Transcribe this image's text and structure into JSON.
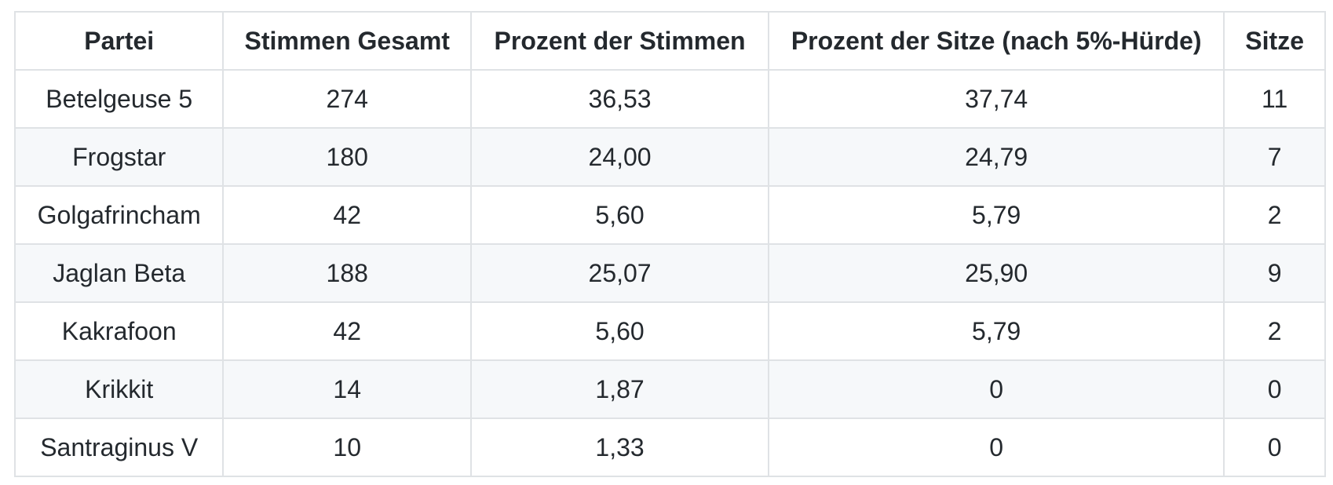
{
  "table": {
    "columns": [
      "Partei",
      "Stimmen Gesamt",
      "Prozent der Stimmen",
      "Prozent der Sitze (nach 5%-Hürde)",
      "Sitze"
    ],
    "rows": [
      [
        "Betelgeuse 5",
        "274",
        "36,53",
        "37,74",
        "11"
      ],
      [
        "Frogstar",
        "180",
        "24,00",
        "24,79",
        "7"
      ],
      [
        "Golgafrincham",
        "42",
        "5,60",
        "5,79",
        "2"
      ],
      [
        "Jaglan Beta",
        "188",
        "25,07",
        "25,90",
        "9"
      ],
      [
        "Kakrafoon",
        "42",
        "5,60",
        "5,79",
        "2"
      ],
      [
        "Krikkit",
        "14",
        "1,87",
        "0",
        "0"
      ],
      [
        "Santraginus V",
        "10",
        "1,33",
        "0",
        "0"
      ]
    ]
  },
  "colors": {
    "text": "#24292e",
    "border": "#dfe2e5",
    "stripe": "#f6f8fa",
    "background": "#ffffff"
  }
}
